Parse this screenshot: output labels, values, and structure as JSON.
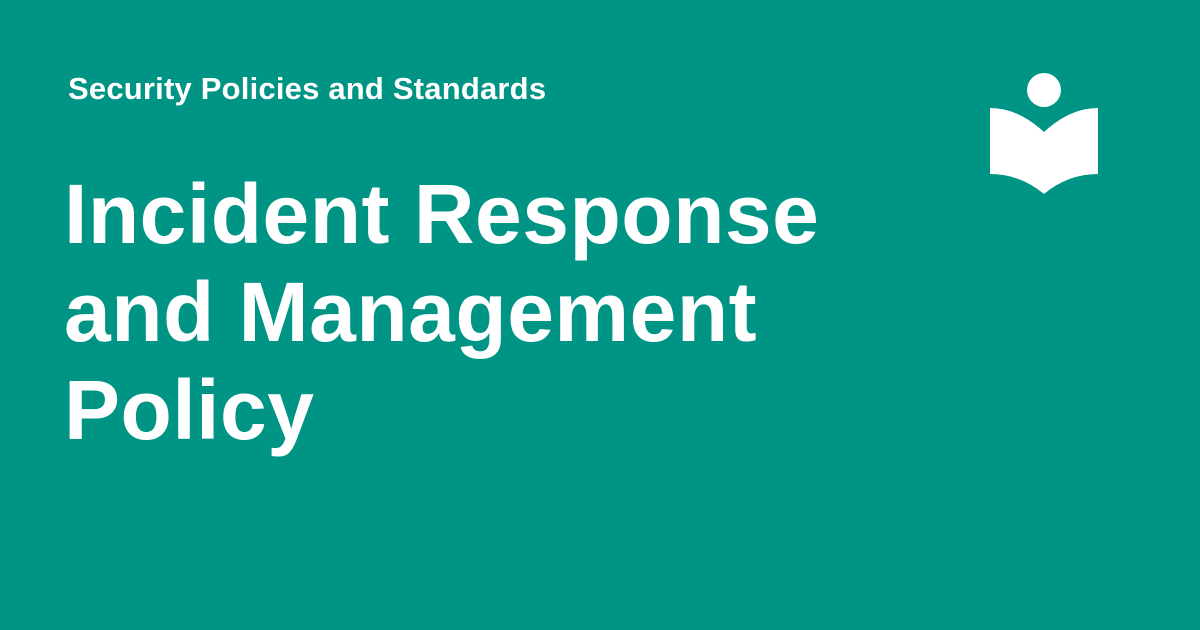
{
  "header": {
    "kicker": "Security Policies and Standards"
  },
  "title": {
    "lines": [
      "Incident Response",
      "and Management",
      "Policy"
    ]
  },
  "logo": {
    "icon": "reader-book-icon"
  },
  "colors": {
    "background": "#009485",
    "text": "#ffffff"
  }
}
